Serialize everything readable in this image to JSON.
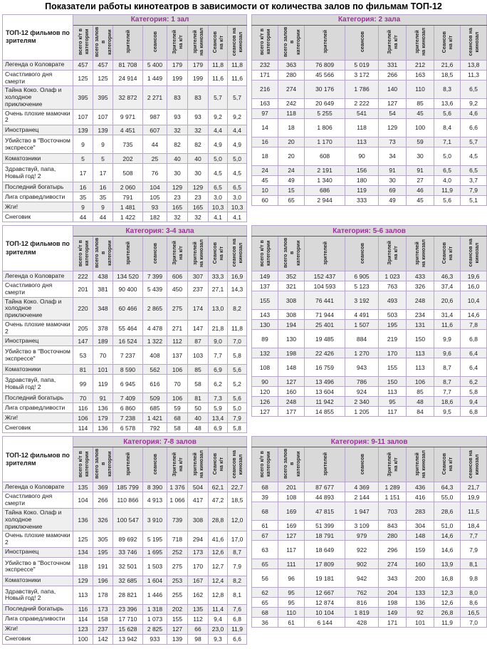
{
  "title": "Показатели работы кинотеатров в зависимости от количества залов по фильмам ТОП-12",
  "row_label_header": "ТОП-12 фильмов по зрителям",
  "column_headers": [
    "всего к/т в\nкатегории",
    "всего залов в\nкатегории",
    "зрителей",
    "сеансов",
    "Зрителей\nна к/т",
    "зрителей\nна кинозал",
    "Сеансов\nна к/т",
    "сеансов на\nкинозал"
  ],
  "films": [
    "Легенда о Коловрате",
    "Счастливого дня смерти",
    "Тайна Коко. Олаф и холодное приключение",
    "Очень плохие мамочки 2",
    "Иностранец",
    "Убийство в \"Восточном экспрессе\"",
    "Коматозники",
    "Здравствуй, папа, Новый год! 2",
    "Последний богатырь",
    "Лига справедливости",
    "Жги!",
    "Снеговик"
  ],
  "tall_row_indices": [
    2,
    5,
    7
  ],
  "colors": {
    "category_text": "#993398",
    "header_bg": "#d9d9d9",
    "inner_border": "#b6a6c9",
    "outer_border": "#7f7f7f",
    "row_alt_bg": "#efefef",
    "row_bg": "#ffffff"
  },
  "tables": [
    {
      "category": "Категория: 1 зал",
      "side": "left",
      "rows": [
        [
          "457",
          "457",
          "81 708",
          "5 400",
          "179",
          "179",
          "11,8",
          "11,8"
        ],
        [
          "125",
          "125",
          "24 914",
          "1 449",
          "199",
          "199",
          "11,6",
          "11,6"
        ],
        [
          "395",
          "395",
          "32 872",
          "2 271",
          "83",
          "83",
          "5,7",
          "5,7"
        ],
        [
          "107",
          "107",
          "9 971",
          "987",
          "93",
          "93",
          "9,2",
          "9,2"
        ],
        [
          "139",
          "139",
          "4 451",
          "607",
          "32",
          "32",
          "4,4",
          "4,4"
        ],
        [
          "9",
          "9",
          "735",
          "44",
          "82",
          "82",
          "4,9",
          "4,9"
        ],
        [
          "5",
          "5",
          "202",
          "25",
          "40",
          "40",
          "5,0",
          "5,0"
        ],
        [
          "17",
          "17",
          "508",
          "76",
          "30",
          "30",
          "4,5",
          "4,5"
        ],
        [
          "16",
          "16",
          "2 060",
          "104",
          "129",
          "129",
          "6,5",
          "6,5"
        ],
        [
          "35",
          "35",
          "791",
          "105",
          "23",
          "23",
          "3,0",
          "3,0"
        ],
        [
          "9",
          "9",
          "1 481",
          "93",
          "165",
          "165",
          "10,3",
          "10,3"
        ],
        [
          "44",
          "44",
          "1 422",
          "182",
          "32",
          "32",
          "4,1",
          "4,1"
        ]
      ]
    },
    {
      "category": "Категория: 2 зала",
      "side": "right",
      "rows": [
        [
          "232",
          "363",
          "76 809",
          "5 019",
          "331",
          "212",
          "21,6",
          "13,8"
        ],
        [
          "171",
          "280",
          "45 566",
          "3 172",
          "266",
          "163",
          "18,5",
          "11,3"
        ],
        [
          "216",
          "274",
          "30 176",
          "1 786",
          "140",
          "110",
          "8,3",
          "6,5"
        ],
        [
          "163",
          "242",
          "20 649",
          "2 222",
          "127",
          "85",
          "13,6",
          "9,2"
        ],
        [
          "97",
          "118",
          "5 255",
          "541",
          "54",
          "45",
          "5,6",
          "4,6"
        ],
        [
          "14",
          "18",
          "1 806",
          "118",
          "129",
          "100",
          "8,4",
          "6,6"
        ],
        [
          "16",
          "20",
          "1 170",
          "113",
          "73",
          "59",
          "7,1",
          "5,7"
        ],
        [
          "18",
          "20",
          "608",
          "90",
          "34",
          "30",
          "5,0",
          "4,5"
        ],
        [
          "24",
          "24",
          "2 191",
          "156",
          "91",
          "91",
          "6,5",
          "6,5"
        ],
        [
          "45",
          "49",
          "1 340",
          "180",
          "30",
          "27",
          "4,0",
          "3,7"
        ],
        [
          "10",
          "15",
          "686",
          "119",
          "69",
          "46",
          "11,9",
          "7,9"
        ],
        [
          "60",
          "65",
          "2 944",
          "333",
          "49",
          "45",
          "5,6",
          "5,1"
        ]
      ]
    },
    {
      "category": "Категория: 3-4 зала",
      "side": "left",
      "rows": [
        [
          "222",
          "438",
          "134 520",
          "7 399",
          "606",
          "307",
          "33,3",
          "16,9"
        ],
        [
          "201",
          "381",
          "90 400",
          "5 439",
          "450",
          "237",
          "27,1",
          "14,3"
        ],
        [
          "220",
          "348",
          "60 466",
          "2 865",
          "275",
          "174",
          "13,0",
          "8,2"
        ],
        [
          "205",
          "378",
          "55 464",
          "4 478",
          "271",
          "147",
          "21,8",
          "11,8"
        ],
        [
          "147",
          "189",
          "16 524",
          "1 322",
          "112",
          "87",
          "9,0",
          "7,0"
        ],
        [
          "53",
          "70",
          "7 237",
          "408",
          "137",
          "103",
          "7,7",
          "5,8"
        ],
        [
          "81",
          "101",
          "8 590",
          "562",
          "106",
          "85",
          "6,9",
          "5,6"
        ],
        [
          "99",
          "119",
          "6 945",
          "616",
          "70",
          "58",
          "6,2",
          "5,2"
        ],
        [
          "70",
          "91",
          "7 409",
          "509",
          "106",
          "81",
          "7,3",
          "5,6"
        ],
        [
          "116",
          "136",
          "6 860",
          "685",
          "59",
          "50",
          "5,9",
          "5,0"
        ],
        [
          "106",
          "179",
          "7 238",
          "1 421",
          "68",
          "40",
          "13,4",
          "7,9"
        ],
        [
          "114",
          "136",
          "6 578",
          "792",
          "58",
          "48",
          "6,9",
          "5,8"
        ]
      ]
    },
    {
      "category": "Категория: 5-6 залов",
      "side": "right",
      "rows": [
        [
          "149",
          "352",
          "152 437",
          "6 905",
          "1 023",
          "433",
          "46,3",
          "19,6"
        ],
        [
          "137",
          "321",
          "104 593",
          "5 123",
          "763",
          "326",
          "37,4",
          "16,0"
        ],
        [
          "155",
          "308",
          "76 441",
          "3 192",
          "493",
          "248",
          "20,6",
          "10,4"
        ],
        [
          "143",
          "308",
          "71 944",
          "4 491",
          "503",
          "234",
          "31,4",
          "14,6"
        ],
        [
          "130",
          "194",
          "25 401",
          "1 507",
          "195",
          "131",
          "11,6",
          "7,8"
        ],
        [
          "89",
          "130",
          "19 485",
          "884",
          "219",
          "150",
          "9,9",
          "6,8"
        ],
        [
          "132",
          "198",
          "22 426",
          "1 270",
          "170",
          "113",
          "9,6",
          "6,4"
        ],
        [
          "108",
          "148",
          "16 759",
          "943",
          "155",
          "113",
          "8,7",
          "6,4"
        ],
        [
          "90",
          "127",
          "13 496",
          "786",
          "150",
          "106",
          "8,7",
          "6,2"
        ],
        [
          "120",
          "160",
          "13 604",
          "924",
          "113",
          "85",
          "7,7",
          "5,8"
        ],
        [
          "126",
          "248",
          "11 942",
          "2 340",
          "95",
          "48",
          "18,6",
          "9,4"
        ],
        [
          "127",
          "177",
          "14 855",
          "1 205",
          "117",
          "84",
          "9,5",
          "6,8"
        ]
      ]
    },
    {
      "category": "Категория: 7-8 залов",
      "side": "left",
      "rows": [
        [
          "135",
          "369",
          "185 799",
          "8 390",
          "1 376",
          "504",
          "62,1",
          "22,7"
        ],
        [
          "104",
          "266",
          "110 866",
          "4 913",
          "1 066",
          "417",
          "47,2",
          "18,5"
        ],
        [
          "136",
          "326",
          "100 547",
          "3 910",
          "739",
          "308",
          "28,8",
          "12,0"
        ],
        [
          "125",
          "305",
          "89 692",
          "5 195",
          "718",
          "294",
          "41,6",
          "17,0"
        ],
        [
          "134",
          "195",
          "33 746",
          "1 695",
          "252",
          "173",
          "12,6",
          "8,7"
        ],
        [
          "118",
          "191",
          "32 501",
          "1 503",
          "275",
          "170",
          "12,7",
          "7,9"
        ],
        [
          "129",
          "196",
          "32 685",
          "1 604",
          "253",
          "167",
          "12,4",
          "8,2"
        ],
        [
          "113",
          "178",
          "28 821",
          "1 446",
          "255",
          "162",
          "12,8",
          "8,1"
        ],
        [
          "116",
          "173",
          "23 396",
          "1 318",
          "202",
          "135",
          "11,4",
          "7,6"
        ],
        [
          "114",
          "158",
          "17 710",
          "1 073",
          "155",
          "112",
          "9,4",
          "6,8"
        ],
        [
          "123",
          "237",
          "15 628",
          "2 825",
          "127",
          "66",
          "23,0",
          "11,9"
        ],
        [
          "100",
          "142",
          "13 942",
          "933",
          "139",
          "98",
          "9,3",
          "6,6"
        ]
      ]
    },
    {
      "category": "Категория: 9-11 залов",
      "side": "right",
      "rows": [
        [
          "68",
          "201",
          "87 677",
          "4 369",
          "1 289",
          "436",
          "64,3",
          "21,7"
        ],
        [
          "39",
          "108",
          "44 893",
          "2 144",
          "1 151",
          "416",
          "55,0",
          "19,9"
        ],
        [
          "68",
          "169",
          "47 815",
          "1 947",
          "703",
          "283",
          "28,6",
          "11,5"
        ],
        [
          "61",
          "169",
          "51 399",
          "3 109",
          "843",
          "304",
          "51,0",
          "18,4"
        ],
        [
          "67",
          "127",
          "18 791",
          "979",
          "280",
          "148",
          "14,6",
          "7,7"
        ],
        [
          "63",
          "117",
          "18 649",
          "922",
          "296",
          "159",
          "14,6",
          "7,9"
        ],
        [
          "65",
          "111",
          "17 809",
          "902",
          "274",
          "160",
          "13,9",
          "8,1"
        ],
        [
          "56",
          "96",
          "19 181",
          "942",
          "343",
          "200",
          "16,8",
          "9,8"
        ],
        [
          "62",
          "95",
          "12 667",
          "762",
          "204",
          "133",
          "12,3",
          "8,0"
        ],
        [
          "65",
          "95",
          "12 874",
          "816",
          "198",
          "136",
          "12,6",
          "8,6"
        ],
        [
          "68",
          "110",
          "10 104",
          "1 819",
          "149",
          "92",
          "26,8",
          "16,5"
        ],
        [
          "36",
          "61",
          "6 144",
          "428",
          "171",
          "101",
          "11,9",
          "7,0"
        ]
      ]
    }
  ]
}
